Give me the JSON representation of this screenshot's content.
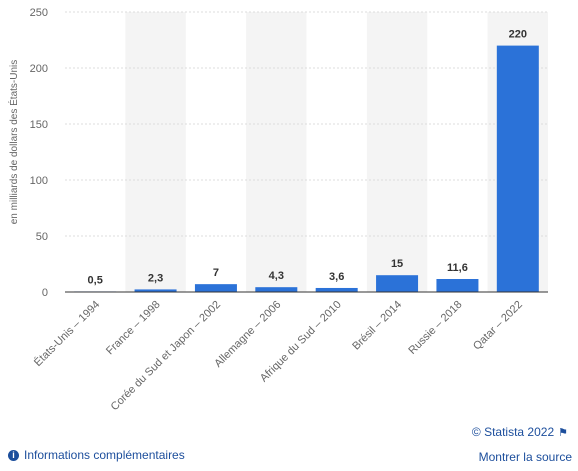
{
  "chart_data": {
    "type": "bar",
    "categories": [
      "États-Unis – 1994",
      "France – 1998",
      "Corée du Sud et Japon – 2002",
      "Allemagne – 2006",
      "Afrique du Sud – 2010",
      "Brésil – 2014",
      "Russie – 2018",
      "Qatar – 2022"
    ],
    "values": [
      0.5,
      2.3,
      7,
      4.3,
      3.6,
      15,
      11.6,
      220
    ],
    "value_labels": [
      "0,5",
      "2,3",
      "7",
      "4,3",
      "3,6",
      "15",
      "11,6",
      "220"
    ],
    "yticks": [
      0,
      50,
      100,
      150,
      200,
      250
    ],
    "ylim": [
      0,
      250
    ],
    "ylabel": "en milliards de dollars des États-Unis",
    "bar_color": "#2b72d8",
    "band_color": "#f4f4f4",
    "grid": true
  },
  "footer": {
    "copyright": "© Statista 2022",
    "more_info": "Informations complémentaires",
    "show_source": "Montrer la source"
  },
  "icons": {
    "info": "info-icon",
    "flag": "flag-icon"
  }
}
